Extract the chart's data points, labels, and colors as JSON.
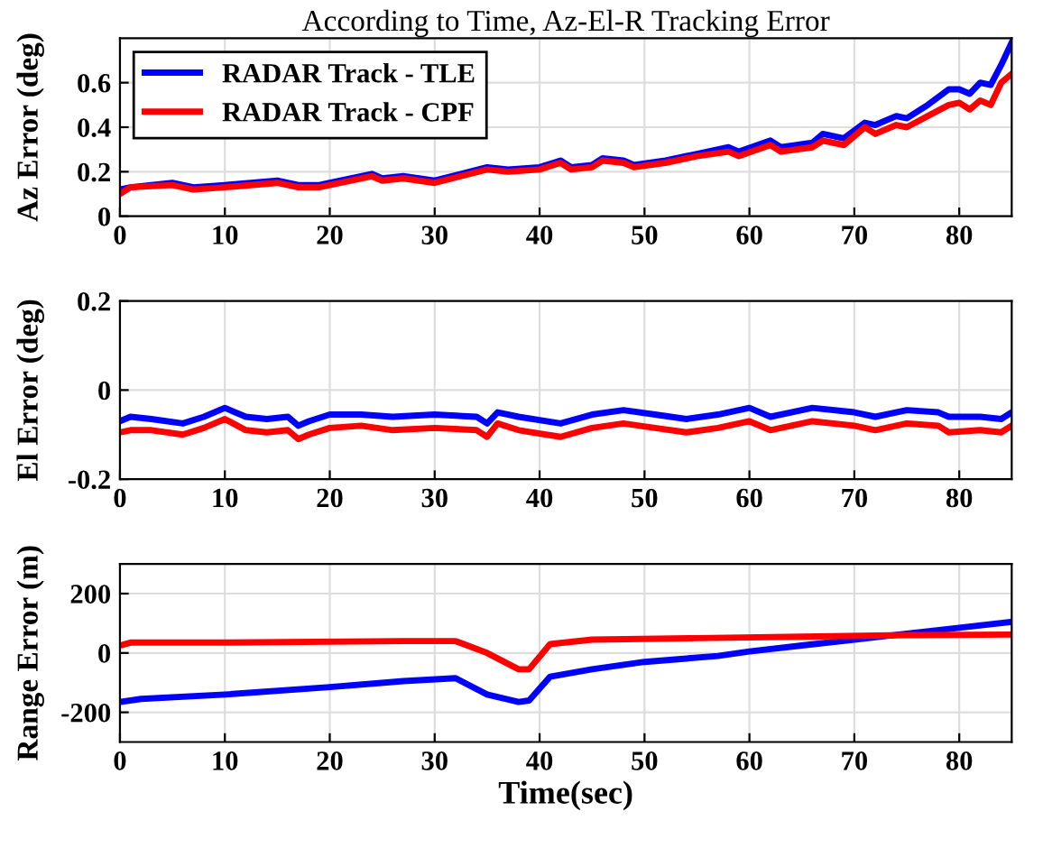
{
  "chart_data": [
    {
      "type": "line",
      "title": "According to Time, Az-El-R Tracking Error",
      "ylabel": "Az Error (deg)",
      "xlim": [
        0,
        85
      ],
      "xticks": [
        0,
        10,
        20,
        30,
        40,
        50,
        60,
        70,
        80
      ],
      "ylim": [
        0,
        0.8
      ],
      "yticks": [
        0,
        0.2,
        0.4,
        0.6
      ],
      "grid": true,
      "legend": "top left",
      "series": [
        {
          "name": "RADAR Track - TLE",
          "color": "#0000ff",
          "x": [
            0,
            1,
            5,
            7,
            10,
            15,
            17,
            19,
            20,
            24,
            25,
            27,
            30,
            35,
            37,
            40,
            42,
            43,
            45,
            46,
            48,
            49,
            52,
            55,
            58,
            59,
            62,
            63,
            66,
            67,
            69,
            71,
            72,
            74,
            75,
            77,
            79,
            80,
            81,
            82,
            83,
            84,
            85
          ],
          "values": [
            0.12,
            0.13,
            0.15,
            0.13,
            0.14,
            0.16,
            0.14,
            0.14,
            0.15,
            0.19,
            0.17,
            0.18,
            0.16,
            0.22,
            0.21,
            0.22,
            0.25,
            0.22,
            0.23,
            0.26,
            0.25,
            0.23,
            0.25,
            0.28,
            0.31,
            0.29,
            0.34,
            0.31,
            0.33,
            0.37,
            0.35,
            0.42,
            0.41,
            0.45,
            0.44,
            0.5,
            0.57,
            0.57,
            0.55,
            0.6,
            0.59,
            0.68,
            0.78
          ]
        },
        {
          "name": "RADAR Track - CPF",
          "color": "#ff0000",
          "x": [
            0,
            1,
            5,
            7,
            10,
            15,
            17,
            19,
            20,
            24,
            25,
            27,
            30,
            35,
            37,
            40,
            42,
            43,
            45,
            46,
            48,
            49,
            52,
            55,
            58,
            59,
            62,
            63,
            66,
            67,
            69,
            71,
            72,
            74,
            75,
            77,
            79,
            80,
            81,
            82,
            83,
            84,
            85
          ],
          "values": [
            0.1,
            0.13,
            0.14,
            0.12,
            0.13,
            0.15,
            0.13,
            0.13,
            0.14,
            0.18,
            0.16,
            0.17,
            0.15,
            0.21,
            0.2,
            0.21,
            0.24,
            0.21,
            0.22,
            0.25,
            0.24,
            0.22,
            0.24,
            0.27,
            0.29,
            0.27,
            0.32,
            0.29,
            0.31,
            0.34,
            0.32,
            0.4,
            0.37,
            0.41,
            0.4,
            0.45,
            0.5,
            0.51,
            0.48,
            0.52,
            0.5,
            0.6,
            0.64
          ]
        }
      ]
    },
    {
      "type": "line",
      "ylabel": "El Error (deg)",
      "xlim": [
        0,
        85
      ],
      "xticks": [
        0,
        10,
        20,
        30,
        40,
        50,
        60,
        70,
        80
      ],
      "ylim": [
        -0.2,
        0.2
      ],
      "yticks": [
        -0.2,
        0,
        0.2
      ],
      "grid": true,
      "series": [
        {
          "color": "#0000ff",
          "x": [
            0,
            1,
            3,
            6,
            8,
            10,
            12,
            14,
            16,
            17,
            18,
            20,
            23,
            26,
            30,
            34,
            35,
            36,
            38,
            42,
            45,
            48,
            51,
            54,
            57,
            60,
            62,
            66,
            70,
            72,
            75,
            78,
            79,
            82,
            84,
            85
          ],
          "values": [
            -0.07,
            -0.06,
            -0.065,
            -0.075,
            -0.06,
            -0.04,
            -0.06,
            -0.065,
            -0.06,
            -0.08,
            -0.07,
            -0.055,
            -0.055,
            -0.06,
            -0.055,
            -0.06,
            -0.075,
            -0.05,
            -0.06,
            -0.075,
            -0.055,
            -0.045,
            -0.055,
            -0.065,
            -0.055,
            -0.04,
            -0.06,
            -0.04,
            -0.05,
            -0.06,
            -0.045,
            -0.05,
            -0.06,
            -0.06,
            -0.065,
            -0.05
          ]
        },
        {
          "color": "#ff0000",
          "x": [
            0,
            1,
            3,
            6,
            8,
            10,
            12,
            14,
            16,
            17,
            18,
            20,
            23,
            26,
            30,
            34,
            35,
            36,
            38,
            42,
            45,
            48,
            51,
            54,
            57,
            60,
            62,
            66,
            70,
            72,
            75,
            78,
            79,
            82,
            84,
            85
          ],
          "values": [
            -0.095,
            -0.09,
            -0.09,
            -0.1,
            -0.085,
            -0.065,
            -0.09,
            -0.095,
            -0.09,
            -0.11,
            -0.1,
            -0.085,
            -0.08,
            -0.09,
            -0.085,
            -0.09,
            -0.105,
            -0.075,
            -0.09,
            -0.105,
            -0.085,
            -0.075,
            -0.085,
            -0.095,
            -0.085,
            -0.07,
            -0.09,
            -0.07,
            -0.08,
            -0.09,
            -0.075,
            -0.08,
            -0.095,
            -0.09,
            -0.095,
            -0.08
          ]
        }
      ]
    },
    {
      "type": "line",
      "xlabel": "Time(sec)",
      "ylabel": "Range Error (m)",
      "xlim": [
        0,
        85
      ],
      "xticks": [
        0,
        10,
        20,
        30,
        40,
        50,
        60,
        70,
        80
      ],
      "ylim": [
        -300,
        300
      ],
      "yticks": [
        -200,
        0,
        200
      ],
      "grid": true,
      "series": [
        {
          "color": "#0000ff",
          "x": [
            0,
            2,
            10,
            20,
            27,
            32,
            35,
            38,
            39,
            41,
            45,
            50,
            57,
            60,
            65,
            70,
            75,
            80,
            85
          ],
          "values": [
            -165,
            -155,
            -140,
            -115,
            -95,
            -85,
            -140,
            -165,
            -160,
            -80,
            -55,
            -30,
            -10,
            5,
            25,
            45,
            65,
            85,
            105
          ]
        },
        {
          "color": "#ff0000",
          "x": [
            0,
            1,
            10,
            27,
            32,
            35,
            38,
            39,
            41,
            45,
            55,
            65,
            75,
            85
          ],
          "values": [
            25,
            35,
            35,
            40,
            40,
            0,
            -55,
            -55,
            30,
            45,
            50,
            55,
            60,
            62
          ]
        }
      ]
    }
  ]
}
